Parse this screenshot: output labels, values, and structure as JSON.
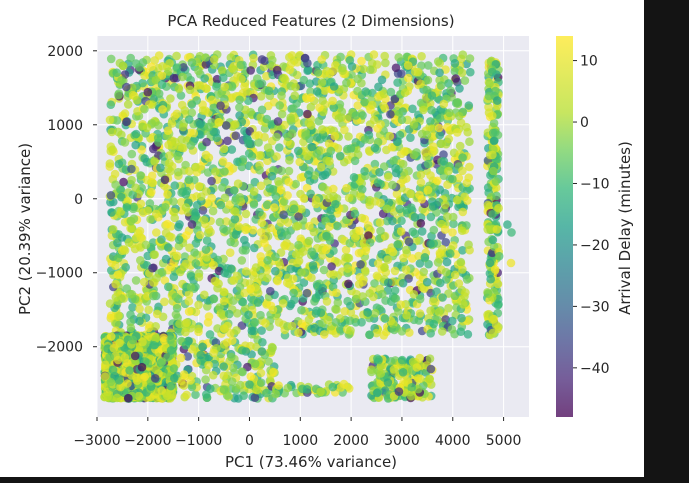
{
  "chart_data": {
    "type": "scatter",
    "title": "PCA Reduced Features (2 Dimensions)",
    "xlabel": "PC1 (73.46% variance)",
    "ylabel": "PC2 (20.39% variance)",
    "xlim": [
      -3000,
      5500
    ],
    "ylim": [
      -2950,
      2200
    ],
    "xticks": [
      -3000,
      -2000,
      -1000,
      0,
      1000,
      2000,
      3000,
      4000,
      5000
    ],
    "xtick_labels": [
      "−3000",
      "−2000",
      "−1000",
      "0",
      "1000",
      "2000",
      "3000",
      "4000",
      "5000"
    ],
    "yticks": [
      -2000,
      -1000,
      0,
      1000,
      2000
    ],
    "ytick_labels": [
      "−2000",
      "−1000",
      "0",
      "1000",
      "2000"
    ],
    "grid": true,
    "colormap": "viridis",
    "colorbar": {
      "label": "Arrival Delay (minutes)",
      "range": [
        -48,
        14
      ],
      "ticks": [
        10,
        0,
        -10,
        -20,
        -30,
        -40
      ],
      "tick_labels": [
        "10",
        "0",
        "−10",
        "−20",
        "−30",
        "−40"
      ]
    },
    "point_regions": [
      {
        "x": [
          -2750,
          4350
        ],
        "y": [
          -1850,
          1950
        ],
        "density": "dense"
      },
      {
        "x": [
          -2850,
          -1500
        ],
        "y": [
          -2700,
          -1850
        ],
        "density": "dense"
      },
      {
        "x": [
          -1500,
          500
        ],
        "y": [
          -2700,
          -1900
        ],
        "density": "medium"
      },
      {
        "x": [
          500,
          2000
        ],
        "y": [
          -2650,
          -2500
        ],
        "density": "sparse"
      },
      {
        "x": [
          2400,
          3600
        ],
        "y": [
          -2700,
          -2150
        ],
        "density": "medium"
      },
      {
        "x": [
          4680,
          4900
        ],
        "y": [
          -1850,
          1880
        ],
        "density": "dense-strip"
      },
      {
        "x": [
          4900,
          5250
        ],
        "y": [
          -900,
          0
        ],
        "density": "outliers"
      }
    ]
  },
  "colors": {
    "plot_background": "#eaeaf2",
    "grid": "#ffffff",
    "page_background": "#141414",
    "figure_background": "#ffffff"
  }
}
